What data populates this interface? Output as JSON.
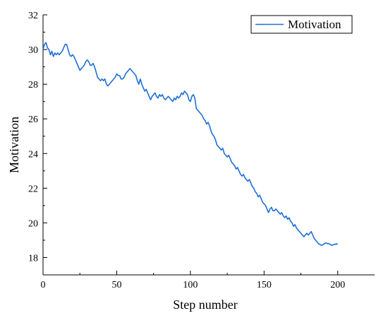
{
  "chart_data": {
    "type": "line",
    "xlabel": "Step number",
    "ylabel": "Motivation",
    "xlim": [
      0,
      225
    ],
    "ylim": [
      17,
      32
    ],
    "x_ticks": [
      0,
      50,
      100,
      150,
      200
    ],
    "y_ticks": [
      18,
      20,
      22,
      24,
      26,
      28,
      30,
      32
    ],
    "legend": "top-right",
    "grid": false,
    "series": [
      {
        "name": "Motivation",
        "color": "#1f6fd6",
        "points": [
          [
            0,
            30.0
          ],
          [
            1,
            30.3
          ],
          [
            2,
            30.4
          ],
          [
            3,
            30.1
          ],
          [
            4,
            30.0
          ],
          [
            5,
            29.7
          ],
          [
            6,
            29.9
          ],
          [
            7,
            29.6
          ],
          [
            8,
            29.8
          ],
          [
            9,
            29.7
          ],
          [
            10,
            29.8
          ],
          [
            11,
            29.7
          ],
          [
            12,
            29.8
          ],
          [
            13,
            29.9
          ],
          [
            14,
            30.1
          ],
          [
            15,
            30.3
          ],
          [
            16,
            30.3
          ],
          [
            17,
            30.0
          ],
          [
            18,
            29.7
          ],
          [
            19,
            29.6
          ],
          [
            20,
            29.7
          ],
          [
            21,
            29.6
          ],
          [
            22,
            29.4
          ],
          [
            23,
            29.2
          ],
          [
            24,
            29.0
          ],
          [
            25,
            28.8
          ],
          [
            26,
            28.9
          ],
          [
            27,
            29.0
          ],
          [
            28,
            29.1
          ],
          [
            29,
            29.3
          ],
          [
            30,
            29.4
          ],
          [
            31,
            29.3
          ],
          [
            32,
            29.1
          ],
          [
            33,
            29.1
          ],
          [
            34,
            29.2
          ],
          [
            35,
            29.0
          ],
          [
            36,
            28.7
          ],
          [
            37,
            28.4
          ],
          [
            38,
            28.3
          ],
          [
            39,
            28.2
          ],
          [
            40,
            28.3
          ],
          [
            41,
            28.2
          ],
          [
            42,
            28.3
          ],
          [
            43,
            28.0
          ],
          [
            44,
            27.9
          ],
          [
            45,
            28.0
          ],
          [
            46,
            28.1
          ],
          [
            47,
            28.2
          ],
          [
            48,
            28.3
          ],
          [
            49,
            28.4
          ],
          [
            50,
            28.6
          ],
          [
            51,
            28.5
          ],
          [
            52,
            28.5
          ],
          [
            53,
            28.3
          ],
          [
            54,
            28.3
          ],
          [
            55,
            28.4
          ],
          [
            56,
            28.6
          ],
          [
            57,
            28.7
          ],
          [
            58,
            28.8
          ],
          [
            59,
            28.9
          ],
          [
            60,
            28.8
          ],
          [
            61,
            28.7
          ],
          [
            62,
            28.6
          ],
          [
            63,
            28.5
          ],
          [
            64,
            28.2
          ],
          [
            65,
            28.0
          ],
          [
            66,
            28.3
          ],
          [
            67,
            28.0
          ],
          [
            68,
            27.8
          ],
          [
            69,
            27.6
          ],
          [
            70,
            27.7
          ],
          [
            71,
            27.5
          ],
          [
            72,
            27.3
          ],
          [
            73,
            27.1
          ],
          [
            74,
            27.3
          ],
          [
            75,
            27.4
          ],
          [
            76,
            27.5
          ],
          [
            77,
            27.3
          ],
          [
            78,
            27.2
          ],
          [
            79,
            27.4
          ],
          [
            80,
            27.3
          ],
          [
            81,
            27.4
          ],
          [
            82,
            27.2
          ],
          [
            83,
            27.1
          ],
          [
            84,
            27.2
          ],
          [
            85,
            27.3
          ],
          [
            86,
            27.2
          ],
          [
            87,
            27.1
          ],
          [
            88,
            27.0
          ],
          [
            89,
            27.2
          ],
          [
            90,
            27.1
          ],
          [
            91,
            27.3
          ],
          [
            92,
            27.2
          ],
          [
            93,
            27.3
          ],
          [
            94,
            27.5
          ],
          [
            95,
            27.4
          ],
          [
            96,
            27.6
          ],
          [
            97,
            27.5
          ],
          [
            98,
            27.4
          ],
          [
            99,
            27.1
          ],
          [
            100,
            27.0
          ],
          [
            101,
            27.3
          ],
          [
            102,
            27.4
          ],
          [
            103,
            27.2
          ],
          [
            104,
            26.6
          ],
          [
            105,
            26.5
          ],
          [
            106,
            26.4
          ],
          [
            107,
            26.3
          ],
          [
            108,
            26.2
          ],
          [
            109,
            26.0
          ],
          [
            110,
            25.9
          ],
          [
            111,
            25.7
          ],
          [
            112,
            25.8
          ],
          [
            113,
            25.6
          ],
          [
            114,
            25.3
          ],
          [
            115,
            25.1
          ],
          [
            116,
            25.0
          ],
          [
            117,
            24.8
          ],
          [
            118,
            24.5
          ],
          [
            119,
            24.4
          ],
          [
            120,
            24.3
          ],
          [
            121,
            24.2
          ],
          [
            122,
            24.3
          ],
          [
            123,
            24.0
          ],
          [
            124,
            23.9
          ],
          [
            125,
            23.8
          ],
          [
            126,
            23.9
          ],
          [
            127,
            23.7
          ],
          [
            128,
            23.5
          ],
          [
            129,
            23.4
          ],
          [
            130,
            23.3
          ],
          [
            131,
            23.1
          ],
          [
            132,
            23.2
          ],
          [
            133,
            23.0
          ],
          [
            134,
            22.8
          ],
          [
            135,
            22.7
          ],
          [
            136,
            22.8
          ],
          [
            137,
            22.6
          ],
          [
            138,
            22.5
          ],
          [
            139,
            22.4
          ],
          [
            140,
            22.5
          ],
          [
            141,
            22.3
          ],
          [
            142,
            22.1
          ],
          [
            143,
            22.0
          ],
          [
            144,
            21.8
          ],
          [
            145,
            21.7
          ],
          [
            146,
            21.5
          ],
          [
            147,
            21.6
          ],
          [
            148,
            21.4
          ],
          [
            149,
            21.2
          ],
          [
            150,
            21.1
          ],
          [
            151,
            21.0
          ],
          [
            152,
            20.8
          ],
          [
            153,
            20.6
          ],
          [
            154,
            20.8
          ],
          [
            155,
            20.9
          ],
          [
            156,
            20.7
          ],
          [
            157,
            20.7
          ],
          [
            158,
            20.8
          ],
          [
            159,
            20.7
          ],
          [
            160,
            20.6
          ],
          [
            161,
            20.5
          ],
          [
            162,
            20.6
          ],
          [
            163,
            20.4
          ],
          [
            164,
            20.3
          ],
          [
            165,
            20.4
          ],
          [
            166,
            20.2
          ],
          [
            167,
            20.3
          ],
          [
            168,
            20.1
          ],
          [
            169,
            20.0
          ],
          [
            170,
            19.8
          ],
          [
            171,
            19.9
          ],
          [
            172,
            19.7
          ],
          [
            173,
            19.6
          ],
          [
            174,
            19.5
          ],
          [
            175,
            19.4
          ],
          [
            176,
            19.3
          ],
          [
            177,
            19.2
          ],
          [
            178,
            19.3
          ],
          [
            179,
            19.4
          ],
          [
            180,
            19.3
          ],
          [
            181,
            19.4
          ],
          [
            182,
            19.5
          ],
          [
            183,
            19.3
          ],
          [
            184,
            19.1
          ],
          [
            185,
            19.0
          ],
          [
            186,
            18.9
          ],
          [
            187,
            18.8
          ],
          [
            188,
            18.75
          ],
          [
            189,
            18.7
          ],
          [
            190,
            18.75
          ],
          [
            191,
            18.8
          ],
          [
            192,
            18.85
          ],
          [
            193,
            18.8
          ],
          [
            194,
            18.8
          ],
          [
            195,
            18.75
          ],
          [
            196,
            18.7
          ],
          [
            197,
            18.75
          ],
          [
            198,
            18.75
          ],
          [
            199,
            18.8
          ],
          [
            200,
            18.75
          ]
        ]
      }
    ]
  }
}
